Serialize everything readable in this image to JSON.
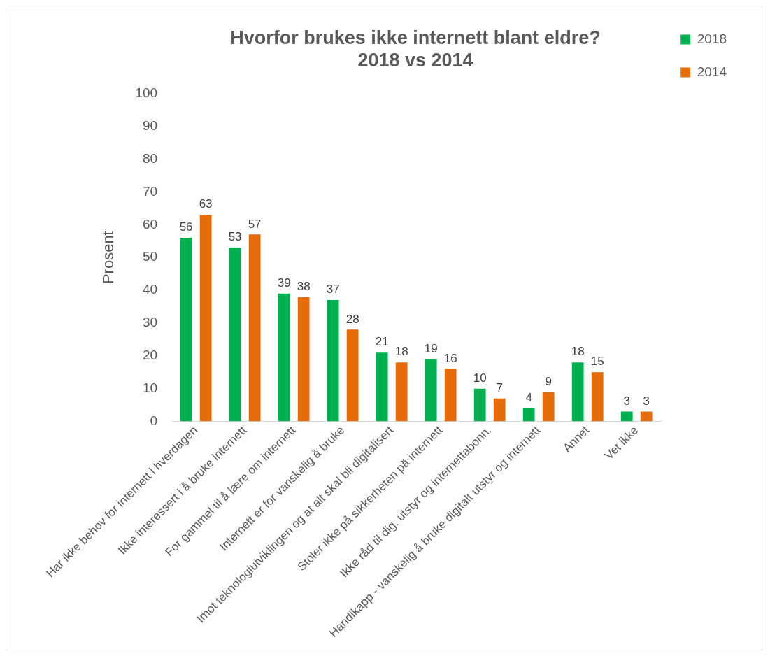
{
  "chart_data": {
    "type": "bar",
    "title": "Hvorfor brukes ikke internett blant eldre?\n2018 vs 2014",
    "ylabel": "Prosent",
    "categories": [
      "Har ikke behov for internett i hverdagen",
      "Ikke interessert i å bruke internett",
      "For gammel til å lære om internett",
      "Internett er for vanskelig å bruke",
      "Imot teknologiutviklingen og at alt skal bli digitalisert",
      "Stoler ikke på sikkerheten på internett",
      "Ikke råd til dig. utstyr og internettabonn.",
      "Handikapp - vanskelig å bruke digitalt utstyr og internett",
      "Annet",
      "Vet ikke"
    ],
    "series": [
      {
        "name": "2018",
        "color": "#00b050",
        "values": [
          56,
          53,
          39,
          37,
          21,
          19,
          10,
          4,
          18,
          3
        ]
      },
      {
        "name": "2014",
        "color": "#e46c0a",
        "values": [
          63,
          57,
          38,
          28,
          18,
          16,
          7,
          9,
          15,
          3
        ]
      }
    ],
    "ylim": [
      0,
      100
    ],
    "yticks": [
      0,
      10,
      20,
      30,
      40,
      50,
      60,
      70,
      80,
      90,
      100
    ],
    "grid": false,
    "legend": "right",
    "data_labels": true
  }
}
